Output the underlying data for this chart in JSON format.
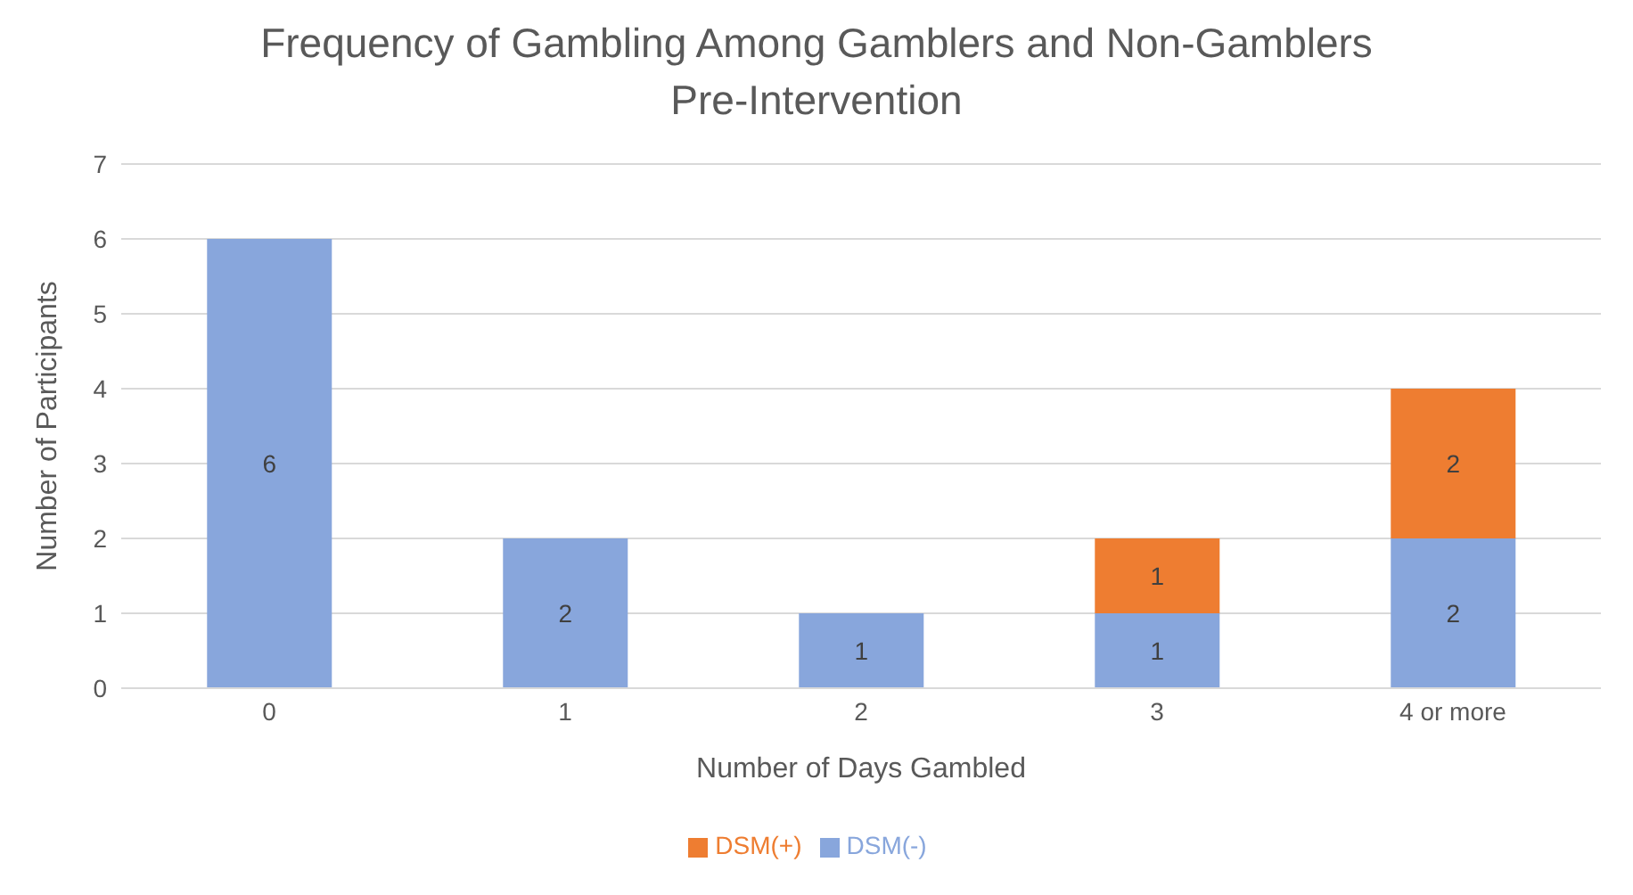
{
  "chart_data": {
    "type": "bar",
    "title": "Frequency of Gambling Among Gamblers and Non-Gamblers\nPre-Intervention",
    "xlabel": "Number of Days Gambled",
    "ylabel": "Number of Participants",
    "categories": [
      "0",
      "1",
      "2",
      "3",
      "4 or more"
    ],
    "stacked": true,
    "series": [
      {
        "name": "DSM(-)",
        "color": "#88a6dc",
        "values": [
          6,
          2,
          1,
          1,
          2
        ],
        "value_labels": [
          "6",
          "2",
          "1",
          "1",
          "2"
        ]
      },
      {
        "name": "DSM(+)",
        "color": "#ee7d31",
        "values": [
          0,
          0,
          0,
          1,
          2
        ],
        "value_labels": [
          null,
          null,
          null,
          "1",
          "2"
        ]
      }
    ],
    "ylim": [
      0,
      7
    ],
    "yticks": [
      0,
      1,
      2,
      3,
      4,
      5,
      6,
      7
    ],
    "grid": "y",
    "legend": "bottom"
  }
}
